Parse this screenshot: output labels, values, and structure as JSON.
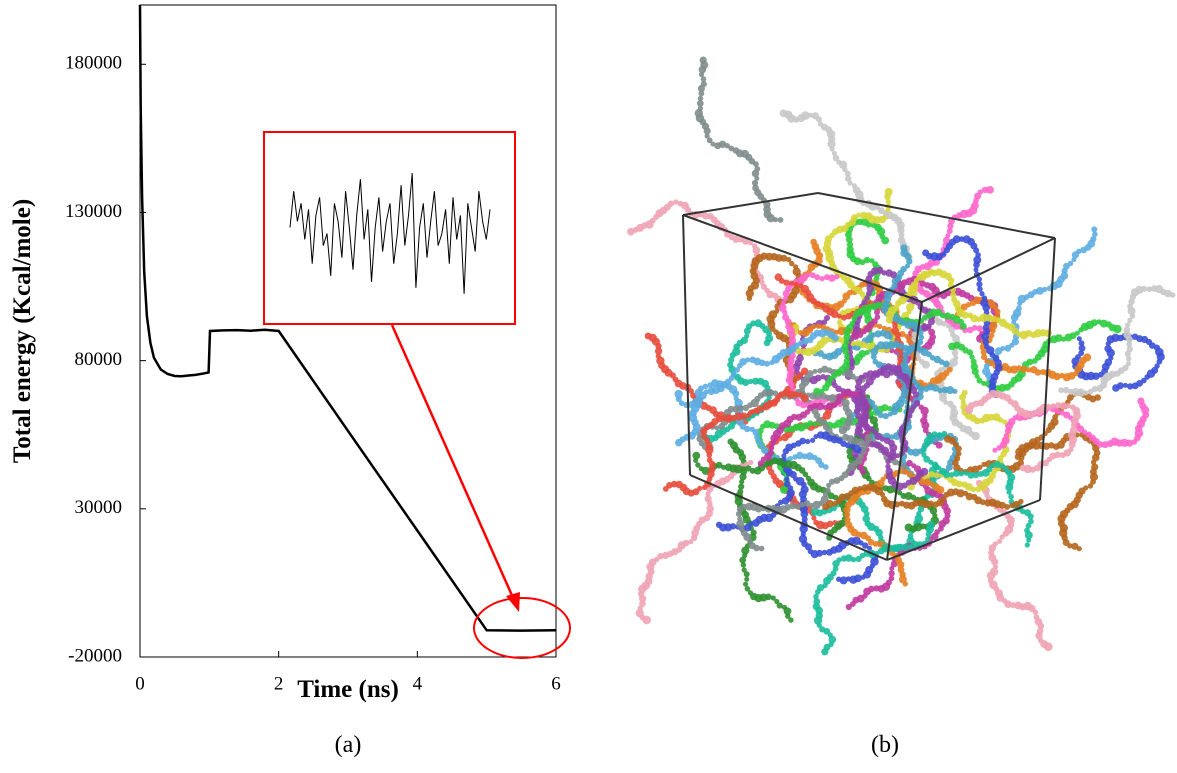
{
  "chart_data": {
    "type": "line",
    "x_label": "Time (ns)",
    "y_label": "Total energy (Kcal/mole)",
    "xlim": [
      0,
      6
    ],
    "xticks": [
      0,
      2,
      4,
      6
    ],
    "ylim": [
      -20000,
      200000
    ],
    "yticks": [
      -20000,
      30000,
      80000,
      130000,
      180000
    ],
    "series": [
      {
        "color": "#000000",
        "x": [
          0,
          0.01,
          0.03,
          0.06,
          0.1,
          0.15,
          0.2,
          0.3,
          0.4,
          0.5,
          0.6,
          0.7,
          0.8,
          0.9,
          0.99,
          1.01,
          1.2,
          1.4,
          1.6,
          1.8,
          2.0,
          3.0,
          4.0,
          5.0,
          5.5,
          6.0
        ],
        "values": [
          200000,
          165000,
          135000,
          110000,
          95000,
          86000,
          81000,
          77000,
          75500,
          74800,
          74700,
          75000,
          75200,
          75600,
          76000,
          90000,
          90200,
          90300,
          90100,
          90400,
          90000,
          56300,
          22700,
          -11000,
          -11100,
          -11000
        ]
      }
    ],
    "inset": {
      "color": "#000000",
      "ylim": [
        -11600,
        -10300
      ],
      "values": [
        -10900,
        -10600,
        -10850,
        -10700,
        -11000,
        -10750,
        -11200,
        -10800,
        -10650,
        -11050,
        -10950,
        -11300,
        -10700,
        -10850,
        -11150,
        -10600,
        -10900,
        -11250,
        -10800,
        -10500,
        -11000,
        -10750,
        -11350,
        -10900,
        -10650,
        -11100,
        -10850,
        -10700,
        -11200,
        -10950,
        -10550,
        -11050,
        -10800,
        -10450,
        -11400,
        -10900,
        -10700,
        -11150,
        -10850,
        -10600,
        -11050,
        -10950,
        -10750,
        -11200,
        -10650,
        -11000,
        -10800,
        -11450,
        -10700,
        -10900,
        -11100,
        -10600,
        -10850,
        -11000,
        -10750
      ]
    },
    "annotation_color": "#ff0000"
  },
  "captions": [
    "(a)",
    "(b)"
  ]
}
